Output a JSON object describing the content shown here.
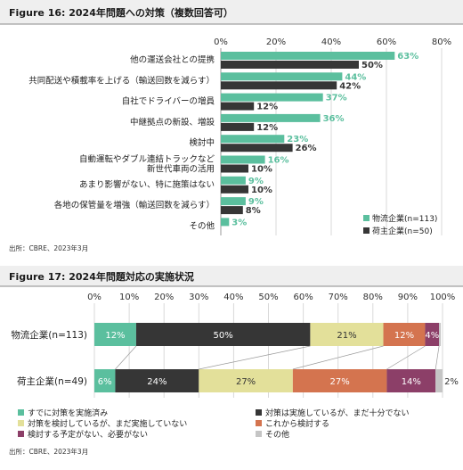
{
  "colors": {
    "teal": "#5bbf9e",
    "dark": "#363636",
    "yellow": "#e3e09a",
    "orange": "#d4744f",
    "purple": "#8c3f68",
    "grey": "#c5c5c5",
    "grid": "#d9d9d9"
  },
  "chart_data": [
    {
      "type": "bar",
      "orientation": "horizontal",
      "title": "Figure 16: 2024年問題への対策（複数回答可）",
      "categories": [
        "他の運送会社との提携",
        "共同配送や積載率を上げる（輸送回数を減らす）",
        "自社でドライバーの増員",
        "中継拠点の新設、増設",
        "検討中",
        "自動運転やダブル連結トラックなど\n新世代車両の活用",
        "あまり影響がない、特に施策はない",
        "各地の保管量を増強（輸送回数を減らす）",
        "その他"
      ],
      "series": [
        {
          "name": "物流企業(n=113)",
          "color_key": "teal",
          "values": [
            63,
            44,
            37,
            36,
            23,
            16,
            9,
            9,
            3
          ],
          "labels": [
            "63%",
            "44%",
            "37%",
            "36%",
            "23%",
            "16%",
            "9%",
            "9%",
            "3%"
          ]
        },
        {
          "name": "荷主企業(n=50)",
          "color_key": "dark",
          "values": [
            50,
            42,
            12,
            12,
            26,
            10,
            10,
            8,
            null
          ],
          "labels": [
            "50%",
            "42%",
            "12%",
            "12%",
            "26%",
            "10%",
            "10%",
            "8%",
            ""
          ]
        }
      ],
      "xlim": [
        0,
        80
      ],
      "xticks": [
        "0%",
        "20%",
        "40%",
        "60%",
        "80%"
      ],
      "source": "出所：CBRE、2023年3月"
    },
    {
      "type": "bar",
      "orientation": "horizontal",
      "stacked": true,
      "title": "Figure 17: 2024年問題対応の実施状況",
      "categories": [
        "物流企業(n=113)",
        "荷主企業(n=49)"
      ],
      "series": [
        {
          "name": "すでに対策を実施済み",
          "color_key": "teal",
          "values": [
            12,
            6
          ],
          "labels": [
            "12%",
            "6%"
          ]
        },
        {
          "name": "対策は実施しているが、まだ十分でない",
          "color_key": "dark",
          "values": [
            50,
            24
          ],
          "labels": [
            "50%",
            "24%"
          ]
        },
        {
          "name": "対策を検討しているが、まだ実施していない",
          "color_key": "yellow",
          "values": [
            21,
            27
          ],
          "labels": [
            "21%",
            "27%"
          ]
        },
        {
          "name": "これから検討する",
          "color_key": "orange",
          "values": [
            12,
            27
          ],
          "labels": [
            "12%",
            "27%"
          ]
        },
        {
          "name": "検討する予定がない、必要がない",
          "color_key": "purple",
          "values": [
            4,
            14
          ],
          "labels": [
            "4%",
            "14%"
          ]
        },
        {
          "name": "その他",
          "color_key": "grey",
          "values": [
            0.5,
            2
          ],
          "labels": [
            "",
            "2%"
          ]
        }
      ],
      "xlim": [
        0,
        100
      ],
      "xticks": [
        "0%",
        "10%",
        "20%",
        "30%",
        "40%",
        "50%",
        "60%",
        "70%",
        "80%",
        "90%",
        "100%"
      ],
      "source": "出所：CBRE、2023年3月"
    }
  ]
}
